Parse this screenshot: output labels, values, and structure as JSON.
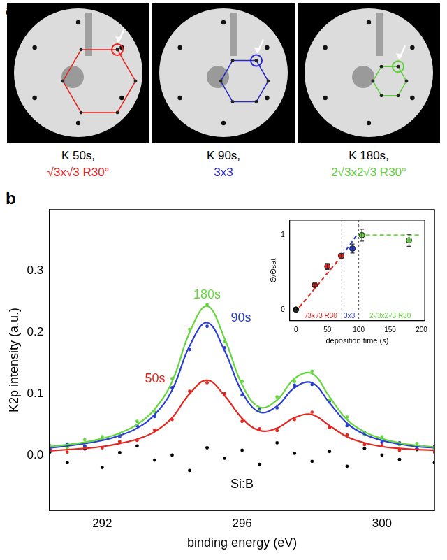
{
  "panel_a": {
    "label": "a",
    "images": [
      {
        "caption": "K 50s,",
        "structure": "√3x√3 R30°",
        "color": "#e3261f"
      },
      {
        "caption": "K 90s,",
        "structure": "3x3",
        "color": "#2a2ac8"
      },
      {
        "caption": "K 180s,",
        "structure": "2√3x2√3 R30°",
        "color": "#5fd03c"
      }
    ]
  },
  "chart_data": [
    {
      "panel": "b",
      "type": "line",
      "x_label": "binding energy (eV)",
      "y_label": "K2p intensity (a.u.)",
      "x": [
        290.5,
        291,
        291.5,
        292,
        292.5,
        293,
        293.5,
        294,
        294.5,
        295,
        295.5,
        296,
        296.5,
        297,
        297.5,
        298,
        298.5,
        299,
        299.5,
        300,
        300.5,
        301,
        301.5
      ],
      "xlim": [
        290.5,
        301.5
      ],
      "xticks": [
        292,
        296,
        300
      ],
      "ylim": [
        -0.09,
        0.4
      ],
      "yticks": [
        {
          "value": 0,
          "label": "0.0"
        },
        {
          "value": 0.1,
          "label": "0.1"
        },
        {
          "value": 0.2,
          "label": "0.2"
        },
        {
          "value": 0.3,
          "label": "0.3"
        }
      ],
      "grid": false,
      "series": [
        {
          "name": "180s",
          "color": "#66d63f",
          "marker": "circle",
          "values": [
            0.016,
            0.012,
            0.025,
            0.03,
            0.033,
            0.055,
            0.07,
            0.125,
            0.205,
            0.245,
            0.185,
            0.12,
            0.072,
            0.095,
            0.12,
            0.137,
            0.09,
            0.062,
            0.033,
            0.03,
            0.017,
            0.019,
            0.01
          ],
          "fit": [
            0.014,
            0.017,
            0.021,
            0.027,
            0.036,
            0.05,
            0.075,
            0.12,
            0.2,
            0.243,
            0.19,
            0.115,
            0.078,
            0.09,
            0.125,
            0.133,
            0.095,
            0.058,
            0.038,
            0.027,
            0.02,
            0.016,
            0.013
          ]
        },
        {
          "name": "90s",
          "color": "#2b3fd0",
          "marker": "circle",
          "values": [
            0.01,
            0.018,
            0.015,
            0.027,
            0.03,
            0.048,
            0.063,
            0.11,
            0.172,
            0.21,
            0.175,
            0.098,
            0.074,
            0.077,
            0.114,
            0.115,
            0.088,
            0.048,
            0.037,
            0.021,
            0.02,
            0.011,
            0.014
          ],
          "fit": [
            0.012,
            0.015,
            0.019,
            0.024,
            0.032,
            0.044,
            0.066,
            0.106,
            0.178,
            0.216,
            0.17,
            0.103,
            0.07,
            0.08,
            0.11,
            0.118,
            0.085,
            0.052,
            0.034,
            0.024,
            0.018,
            0.014,
            0.012
          ]
        },
        {
          "name": "50s",
          "color": "#e3261f",
          "marker": "circle",
          "values": [
            0.009,
            0.005,
            0.014,
            0.012,
            0.022,
            0.024,
            0.041,
            0.058,
            0.104,
            0.118,
            0.1,
            0.055,
            0.043,
            0.04,
            0.058,
            0.07,
            0.045,
            0.033,
            0.017,
            0.016,
            0.008,
            0.011,
            0.005
          ],
          "fit": [
            0.007,
            0.009,
            0.011,
            0.014,
            0.019,
            0.026,
            0.038,
            0.061,
            0.1,
            0.122,
            0.097,
            0.06,
            0.04,
            0.044,
            0.061,
            0.066,
            0.048,
            0.03,
            0.02,
            0.014,
            0.011,
            0.009,
            0.008
          ]
        },
        {
          "name": "Si:B",
          "color": "#000000",
          "marker": "circle",
          "values": [
            0.005,
            -0.012,
            0.01,
            -0.02,
            0.004,
            0.015,
            -0.008,
            0.0,
            -0.025,
            0.012,
            -0.005,
            0.008,
            -0.015,
            0.02,
            0.003,
            -0.01,
            0.006,
            -0.018,
            0.011,
            0.0,
            -0.007,
            0.009,
            -0.012
          ]
        }
      ]
    },
    {
      "type": "scatter",
      "x_label": "deposition time (s)",
      "y_label": "Θ/Θsat",
      "x": [
        0,
        30,
        50,
        72,
        90,
        105,
        180
      ],
      "values": [
        0,
        0.33,
        0.58,
        0.72,
        0.82,
        1.0,
        0.93
      ],
      "errors": [
        0.02,
        0.02,
        0.04,
        0.03,
        0.06,
        0.08,
        0.08
      ],
      "colors": [
        "#000000",
        "#e3261f",
        "#e3261f",
        "#e3261f",
        "#2b3fd0",
        "#66d63f",
        "#66d63f"
      ],
      "marker": "circle",
      "xlim": [
        -10,
        205
      ],
      "xticks": [
        0,
        50,
        100,
        150,
        200
      ],
      "ylim": [
        -0.15,
        1.2
      ],
      "yticks": [
        0,
        1
      ],
      "grid": false,
      "boundaries": [
        73,
        100
      ],
      "fits": [
        {
          "name": "√3x√3 R30",
          "color": "#e3261f",
          "line_style": "dashed",
          "x": [
            5,
            73
          ],
          "values": [
            0.03,
            0.72
          ]
        },
        {
          "name": "3x3",
          "color": "#2b3fd0",
          "line_style": "dashed",
          "x": [
            73,
            97
          ],
          "values": [
            0.72,
            1.0
          ]
        },
        {
          "name": "2√3x2√3 R30",
          "color": "#66d63f",
          "line_style": "dashed",
          "x": [
            100,
            200
          ],
          "values": [
            1.0,
            1.0
          ]
        }
      ]
    }
  ]
}
